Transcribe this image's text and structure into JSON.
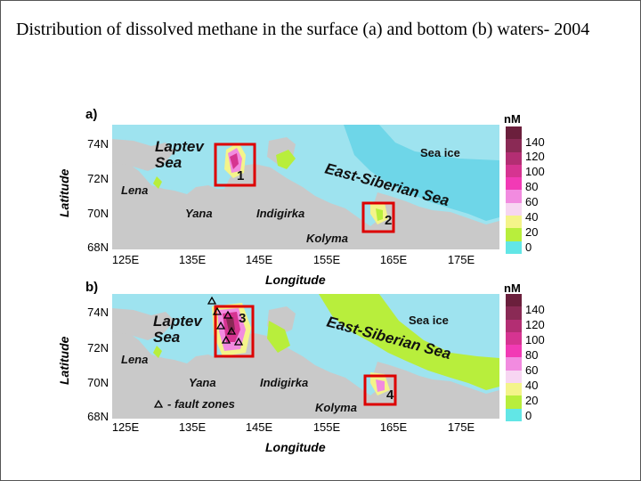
{
  "title": "Distribution of dissolved methane  in the surface (a) and bottom (b) waters- 2004",
  "legend_unit": "nM",
  "legend_ticks": [
    "140",
    "120",
    "100",
    "80",
    "60",
    "40",
    "20",
    "0"
  ],
  "legend_colors": [
    "#6b1f3c",
    "#8a2a55",
    "#b32e73",
    "#d63491",
    "#f23ab5",
    "#f28be0",
    "#f7d6f2",
    "#f4f48a",
    "#b8ee3c",
    "#62e6e6"
  ],
  "lat_ticks": [
    "74N",
    "72N",
    "70N",
    "68N"
  ],
  "lon_ticks": [
    "125E",
    "135E",
    "145E",
    "155E",
    "165E",
    "175E"
  ],
  "ylabel": "Latitude",
  "xlabel": "Longitude",
  "panel_a": {
    "label": "a)",
    "sea_ice": "Sea ice",
    "laptev": [
      "Laptev",
      "Sea"
    ],
    "east_siberian": "East-Siberian Sea",
    "rivers": [
      "Lena",
      "Yana",
      "Indigirka",
      "Kolyma"
    ],
    "box_numbers": [
      "1",
      "2"
    ]
  },
  "panel_b": {
    "label": "b)",
    "sea_ice": "Sea ice",
    "laptev": [
      "Laptev",
      "Sea"
    ],
    "east_siberian": "East-Siberian Sea",
    "rivers": [
      "Lena",
      "Yana",
      "Indigirka",
      "Kolyma"
    ],
    "box_numbers": [
      "3",
      "4"
    ],
    "fault_label": "- fault zones"
  },
  "colors": {
    "land": "#c9c9c9",
    "water": "#9ee3ef",
    "sea_ice": "#6ed6e8",
    "box": "#dd0000"
  }
}
